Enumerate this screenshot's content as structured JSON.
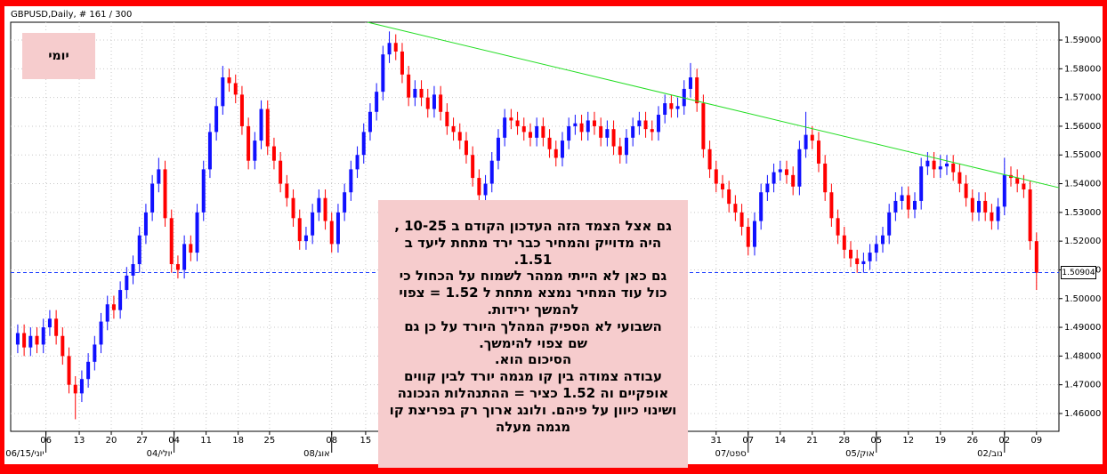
{
  "chart_data": {
    "type": "candlestick",
    "title": "GBPUSD,Daily, # 161 / 300",
    "period_label": "יומי",
    "up_color": "#1010ff",
    "down_color": "#ff0000",
    "grid": true,
    "xlim": [
      -1.1,
      162.5
    ],
    "ylim": [
      1.4538,
      1.5962
    ],
    "yticks": [
      {
        "value": 1.46,
        "label": "1.46000"
      },
      {
        "value": 1.47,
        "label": "1.47000"
      },
      {
        "value": 1.48,
        "label": "1.48000"
      },
      {
        "value": 1.49,
        "label": "1.49000"
      },
      {
        "value": 1.5,
        "label": "1.50000"
      },
      {
        "value": 1.51,
        "label": "1.51000"
      },
      {
        "value": 1.52,
        "label": "1.52000"
      },
      {
        "value": 1.53,
        "label": "1.53000"
      },
      {
        "value": 1.54,
        "label": "1.54000"
      },
      {
        "value": 1.55,
        "label": "1.55000"
      },
      {
        "value": 1.56,
        "label": "1.56000"
      },
      {
        "value": 1.57,
        "label": "1.57000"
      },
      {
        "value": 1.58,
        "label": "1.58000"
      },
      {
        "value": 1.59,
        "label": "1.59000"
      }
    ],
    "xticks": [
      {
        "value": 4.4,
        "label": "06"
      },
      {
        "value": 9.6,
        "label": "13"
      },
      {
        "value": 14.6,
        "label": "20"
      },
      {
        "value": 19.4,
        "label": "27"
      },
      {
        "value": 24.4,
        "label": "04"
      },
      {
        "value": 29.4,
        "label": "11"
      },
      {
        "value": 34.4,
        "label": "18"
      },
      {
        "value": 39.3,
        "label": "25"
      },
      {
        "value": 49,
        "label": "08"
      },
      {
        "value": 54.3,
        "label": "15"
      },
      {
        "value": 109,
        "label": "31"
      },
      {
        "value": 114,
        "label": "07"
      },
      {
        "value": 119,
        "label": "14"
      },
      {
        "value": 124,
        "label": "21"
      },
      {
        "value": 129,
        "label": "28"
      },
      {
        "value": 134,
        "label": "05"
      },
      {
        "value": 139,
        "label": "12"
      },
      {
        "value": 144,
        "label": "19"
      },
      {
        "value": 149,
        "label": "26"
      },
      {
        "value": 154,
        "label": "02"
      },
      {
        "value": 159,
        "label": "09"
      }
    ],
    "xperiods": [
      {
        "value": 4.4,
        "label": "06/15/יוני"
      },
      {
        "value": 24.4,
        "label": "04/יולי"
      },
      {
        "value": 49,
        "label": "08/אוג"
      },
      {
        "value": 114,
        "label": "07/ספט"
      },
      {
        "value": 134,
        "label": "05/אוק"
      },
      {
        "value": 154,
        "label": "02/נוב"
      }
    ],
    "open": [
      1.484,
      1.488,
      1.483,
      1.487,
      1.484,
      1.49,
      1.493,
      1.487,
      1.48,
      1.47,
      1.467,
      1.472,
      1.478,
      1.484,
      1.492,
      1.498,
      1.496,
      1.503,
      1.508,
      1.512,
      1.522,
      1.53,
      1.54,
      1.545,
      1.528,
      1.512,
      1.51,
      1.519,
      1.516,
      1.53,
      1.545,
      1.558,
      1.567,
      1.577,
      1.575,
      1.571,
      1.56,
      1.548,
      1.555,
      1.566,
      1.553,
      1.548,
      1.54,
      1.535,
      1.528,
      1.52,
      1.522,
      1.53,
      1.535,
      1.527,
      1.519,
      1.53,
      1.537,
      1.545,
      1.55,
      1.558,
      1.565,
      1.572,
      1.585,
      1.589,
      1.586,
      1.578,
      1.57,
      1.573,
      1.57,
      1.566,
      1.571,
      1.565,
      1.56,
      1.558,
      1.555,
      1.55,
      1.542,
      1.536,
      1.54,
      1.548,
      1.556,
      1.563,
      1.562,
      1.56,
      1.558,
      1.556,
      1.56,
      1.556,
      1.552,
      1.549,
      1.555,
      1.56,
      1.561,
      1.558,
      1.562,
      1.56,
      1.556,
      1.559,
      1.553,
      1.55,
      1.556,
      1.56,
      1.562,
      1.559,
      1.558,
      1.564,
      1.568,
      1.566,
      1.567,
      1.573,
      1.577,
      1.568,
      1.552,
      1.545,
      1.54,
      1.538,
      1.533,
      1.53,
      1.525,
      1.518,
      1.527,
      1.537,
      1.54,
      1.544,
      1.545,
      1.543,
      1.539,
      1.552,
      1.557,
      1.555,
      1.547,
      1.537,
      1.528,
      1.522,
      1.517,
      1.514,
      1.512,
      1.513,
      1.516,
      1.519,
      1.522,
      1.53,
      1.534,
      1.536,
      1.531,
      1.534,
      1.546,
      1.548,
      1.545,
      1.546,
      1.547,
      1.544,
      1.54,
      1.535,
      1.53,
      1.534,
      1.53,
      1.527,
      1.532,
      1.543,
      1.542,
      1.54,
      1.538,
      1.52
    ],
    "high": [
      1.491,
      1.491,
      1.49,
      1.49,
      1.493,
      1.496,
      1.496,
      1.49,
      1.483,
      1.473,
      1.475,
      1.481,
      1.487,
      1.495,
      1.501,
      1.501,
      1.506,
      1.511,
      1.515,
      1.525,
      1.533,
      1.543,
      1.549,
      1.548,
      1.531,
      1.515,
      1.522,
      1.522,
      1.533,
      1.548,
      1.561,
      1.57,
      1.581,
      1.58,
      1.578,
      1.574,
      1.563,
      1.558,
      1.569,
      1.569,
      1.556,
      1.551,
      1.543,
      1.538,
      1.531,
      1.525,
      1.533,
      1.538,
      1.538,
      1.53,
      1.533,
      1.54,
      1.548,
      1.553,
      1.561,
      1.568,
      1.575,
      1.588,
      1.593,
      1.592,
      1.589,
      1.581,
      1.576,
      1.576,
      1.573,
      1.574,
      1.574,
      1.568,
      1.563,
      1.561,
      1.558,
      1.553,
      1.545,
      1.543,
      1.551,
      1.559,
      1.566,
      1.566,
      1.565,
      1.563,
      1.561,
      1.563,
      1.563,
      1.559,
      1.555,
      1.558,
      1.563,
      1.564,
      1.564,
      1.565,
      1.565,
      1.563,
      1.562,
      1.562,
      1.556,
      1.559,
      1.563,
      1.565,
      1.565,
      1.562,
      1.567,
      1.571,
      1.571,
      1.57,
      1.576,
      1.582,
      1.58,
      1.571,
      1.555,
      1.548,
      1.543,
      1.541,
      1.536,
      1.533,
      1.528,
      1.53,
      1.54,
      1.543,
      1.547,
      1.548,
      1.548,
      1.546,
      1.555,
      1.565,
      1.56,
      1.558,
      1.55,
      1.54,
      1.531,
      1.525,
      1.52,
      1.517,
      1.516,
      1.519,
      1.522,
      1.525,
      1.533,
      1.537,
      1.539,
      1.539,
      1.537,
      1.549,
      1.551,
      1.551,
      1.55,
      1.55,
      1.55,
      1.547,
      1.543,
      1.538,
      1.537,
      1.537,
      1.533,
      1.535,
      1.549,
      1.546,
      1.545,
      1.543,
      1.541,
      1.523
    ],
    "low": [
      1.481,
      1.48,
      1.48,
      1.481,
      1.481,
      1.487,
      1.484,
      1.477,
      1.467,
      1.458,
      1.464,
      1.469,
      1.475,
      1.481,
      1.489,
      1.493,
      1.493,
      1.5,
      1.505,
      1.509,
      1.519,
      1.527,
      1.537,
      1.525,
      1.509,
      1.507,
      1.507,
      1.513,
      1.513,
      1.527,
      1.542,
      1.555,
      1.564,
      1.572,
      1.568,
      1.557,
      1.545,
      1.545,
      1.552,
      1.55,
      1.545,
      1.537,
      1.532,
      1.525,
      1.517,
      1.517,
      1.519,
      1.527,
      1.524,
      1.516,
      1.516,
      1.527,
      1.534,
      1.542,
      1.547,
      1.555,
      1.562,
      1.569,
      1.582,
      1.583,
      1.575,
      1.567,
      1.567,
      1.567,
      1.563,
      1.563,
      1.562,
      1.557,
      1.555,
      1.552,
      1.547,
      1.539,
      1.533,
      1.533,
      1.537,
      1.545,
      1.553,
      1.559,
      1.557,
      1.555,
      1.553,
      1.553,
      1.553,
      1.549,
      1.546,
      1.546,
      1.552,
      1.557,
      1.555,
      1.555,
      1.557,
      1.553,
      1.553,
      1.55,
      1.547,
      1.547,
      1.553,
      1.557,
      1.556,
      1.555,
      1.555,
      1.561,
      1.563,
      1.563,
      1.564,
      1.57,
      1.565,
      1.549,
      1.542,
      1.537,
      1.535,
      1.53,
      1.527,
      1.522,
      1.515,
      1.515,
      1.524,
      1.534,
      1.537,
      1.541,
      1.54,
      1.536,
      1.536,
      1.549,
      1.552,
      1.544,
      1.534,
      1.525,
      1.519,
      1.514,
      1.511,
      1.509,
      1.509,
      1.51,
      1.513,
      1.516,
      1.519,
      1.527,
      1.531,
      1.528,
      1.528,
      1.531,
      1.543,
      1.542,
      1.542,
      1.543,
      1.541,
      1.537,
      1.532,
      1.527,
      1.527,
      1.527,
      1.524,
      1.524,
      1.529,
      1.539,
      1.537,
      1.535,
      1.517,
      1.503
    ],
    "close": [
      1.488,
      1.483,
      1.487,
      1.484,
      1.49,
      1.493,
      1.487,
      1.48,
      1.47,
      1.467,
      1.472,
      1.478,
      1.484,
      1.492,
      1.498,
      1.496,
      1.503,
      1.508,
      1.512,
      1.522,
      1.53,
      1.54,
      1.545,
      1.528,
      1.512,
      1.51,
      1.519,
      1.516,
      1.53,
      1.545,
      1.558,
      1.567,
      1.577,
      1.575,
      1.571,
      1.56,
      1.548,
      1.555,
      1.566,
      1.553,
      1.548,
      1.54,
      1.535,
      1.528,
      1.52,
      1.522,
      1.53,
      1.535,
      1.527,
      1.519,
      1.53,
      1.537,
      1.545,
      1.55,
      1.558,
      1.565,
      1.572,
      1.585,
      1.589,
      1.586,
      1.578,
      1.57,
      1.573,
      1.57,
      1.566,
      1.571,
      1.565,
      1.56,
      1.558,
      1.555,
      1.55,
      1.542,
      1.536,
      1.54,
      1.548,
      1.556,
      1.563,
      1.562,
      1.56,
      1.558,
      1.556,
      1.56,
      1.556,
      1.552,
      1.549,
      1.555,
      1.56,
      1.561,
      1.558,
      1.562,
      1.56,
      1.556,
      1.559,
      1.553,
      1.55,
      1.556,
      1.56,
      1.562,
      1.559,
      1.558,
      1.564,
      1.568,
      1.566,
      1.567,
      1.573,
      1.577,
      1.568,
      1.552,
      1.545,
      1.54,
      1.538,
      1.533,
      1.53,
      1.525,
      1.518,
      1.527,
      1.537,
      1.54,
      1.544,
      1.545,
      1.543,
      1.539,
      1.552,
      1.557,
      1.555,
      1.547,
      1.537,
      1.528,
      1.522,
      1.517,
      1.514,
      1.512,
      1.513,
      1.516,
      1.519,
      1.522,
      1.53,
      1.534,
      1.536,
      1.531,
      1.534,
      1.546,
      1.548,
      1.545,
      1.546,
      1.547,
      1.544,
      1.54,
      1.535,
      1.53,
      1.534,
      1.53,
      1.527,
      1.532,
      1.543,
      1.542,
      1.54,
      1.538,
      1.52,
      1.509
    ],
    "last_price": 1.50904,
    "last_price_color": "#1a3cff",
    "trendline": {
      "color": "#22dd22",
      "x": [
        54.6,
        162.5
      ],
      "y": [
        1.5962,
        1.5386
      ]
    },
    "annotation": {
      "lines": [
        "גם אצל הצמד הזה העדכון הקודם ב 10-25 ,",
        "היה מדוייק והמחיר כבר ירד מתחת ליעד ב",
        "1.51.",
        "גם כאן לא הייתי ממהר לשמוח על הכחול כי",
        "כול עוד המחיר נמצא מתחת ל 1.52 = צפוי",
        "להמשך ירידות.",
        "השבועי לא הספיק המהלך היורד על כן גם",
        "שם צפוי להימשך.",
        "הסיכום הוא.",
        "עבודה צמודה בין קו מגמה יורד לבין קווים",
        "אופקיים וה 1.52 כציר = ההתנהלות הנכונה",
        "ושינוי כיוון על פיהם. ולונג ארוך רק בפריצת קו",
        "מגמה מעלה"
      ]
    }
  }
}
